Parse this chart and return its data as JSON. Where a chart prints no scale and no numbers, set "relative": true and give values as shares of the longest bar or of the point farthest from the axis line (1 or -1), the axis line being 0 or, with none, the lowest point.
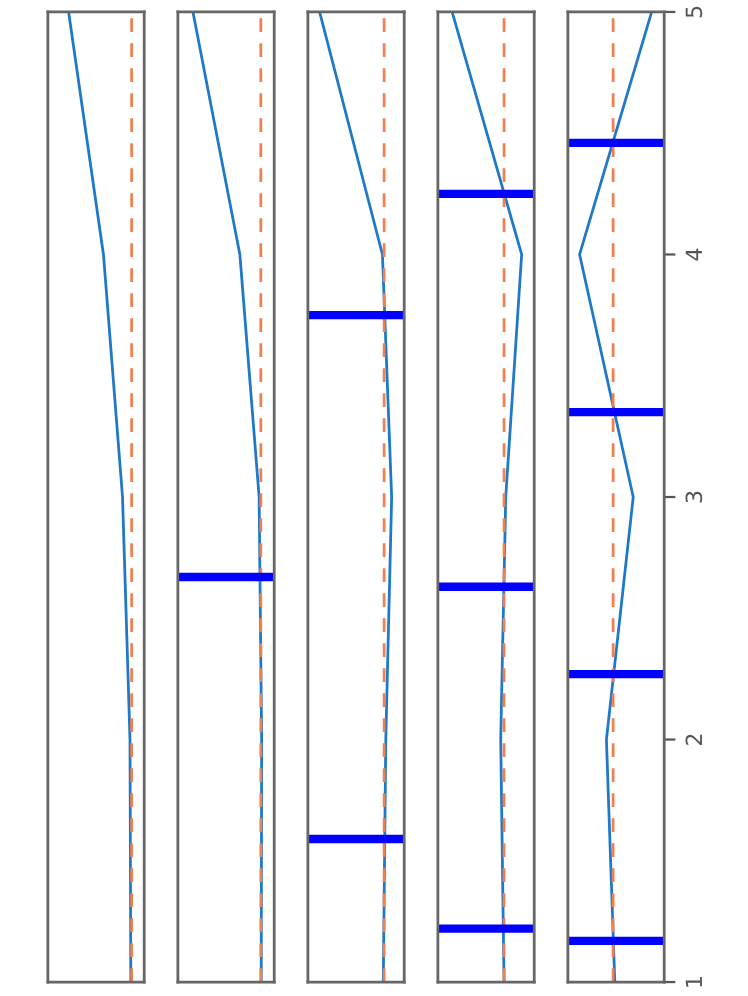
{
  "chart_data": [
    {
      "type": "line",
      "orientation": "horizontal",
      "relative": true,
      "x": [
        5,
        4,
        3,
        2,
        1
      ],
      "ylim": [
        1,
        5
      ],
      "tick_labels": false,
      "series": [
        {
          "color": "#1f78c8",
          "values": [
            0.25,
            0.67,
            0.9,
            0.99,
            1.0
          ]
        }
      ],
      "ref_lines": [
        {
          "axis": "x",
          "value": 1.01,
          "color": "#f08050",
          "line_style": "dashed"
        }
      ]
    },
    {
      "type": "line",
      "orientation": "horizontal",
      "relative": true,
      "x": [
        5,
        4,
        3,
        2,
        1
      ],
      "ylim": [
        1,
        5
      ],
      "tick_labels": false,
      "series": [
        {
          "color": "#1f78c8",
          "values": [
            0.18,
            0.74,
            0.97,
            1.0,
            0.995
          ]
        }
      ],
      "ref_lines": [
        {
          "axis": "x",
          "value": 0.99,
          "color": "#f08050",
          "line_style": "dashed"
        },
        {
          "axis": "y",
          "value": 2.67,
          "color": "#0000ff"
        }
      ]
    },
    {
      "type": "line",
      "orientation": "horizontal",
      "relative": true,
      "x": [
        5,
        4,
        3,
        2,
        1
      ],
      "ylim": [
        1,
        5
      ],
      "tick_labels": false,
      "series": [
        {
          "color": "#1f78c8",
          "values": [
            0.14,
            0.89,
            1.0,
            0.93,
            0.9
          ]
        }
      ],
      "ref_lines": [
        {
          "axis": "x",
          "value": 0.91,
          "color": "#f08050",
          "line_style": "dashed"
        },
        {
          "axis": "y",
          "value": 3.75,
          "color": "#0000ff"
        },
        {
          "axis": "y",
          "value": 1.59,
          "color": "#0000ff"
        }
      ]
    },
    {
      "type": "line",
      "orientation": "horizontal",
      "relative": true,
      "x": [
        5,
        4,
        3,
        2,
        1
      ],
      "ylim": [
        1,
        5
      ],
      "tick_labels": false,
      "series": [
        {
          "color": "#1f78c8",
          "values": [
            0.17,
            1.0,
            0.81,
            0.75,
            0.79
          ]
        }
      ],
      "ref_lines": [
        {
          "axis": "x",
          "value": 0.79,
          "color": "#f08050",
          "line_style": "dashed"
        },
        {
          "axis": "y",
          "value": 4.25,
          "color": "#0000ff"
        },
        {
          "axis": "y",
          "value": 2.63,
          "color": "#0000ff"
        },
        {
          "axis": "y",
          "value": 1.22,
          "color": "#0000ff"
        }
      ]
    },
    {
      "type": "line",
      "orientation": "horizontal",
      "relative": true,
      "x": [
        5,
        4,
        3,
        2,
        1
      ],
      "ylim": [
        1,
        5
      ],
      "yticks": [
        1,
        2,
        3,
        4,
        5
      ],
      "tick_labels": "y",
      "series": [
        {
          "color": "#1f78c8",
          "values": [
            1.0,
            0.14,
            0.78,
            0.46,
            0.56
          ]
        }
      ],
      "ref_lines": [
        {
          "axis": "x",
          "value": 0.54,
          "color": "#f08050",
          "line_style": "dashed"
        },
        {
          "axis": "y",
          "value": 4.46,
          "color": "#0000ff"
        },
        {
          "axis": "y",
          "value": 3.35,
          "color": "#0000ff"
        },
        {
          "axis": "y",
          "value": 2.27,
          "color": "#0000ff"
        },
        {
          "axis": "y",
          "value": 1.17,
          "color": "#0000ff"
        }
      ]
    }
  ]
}
